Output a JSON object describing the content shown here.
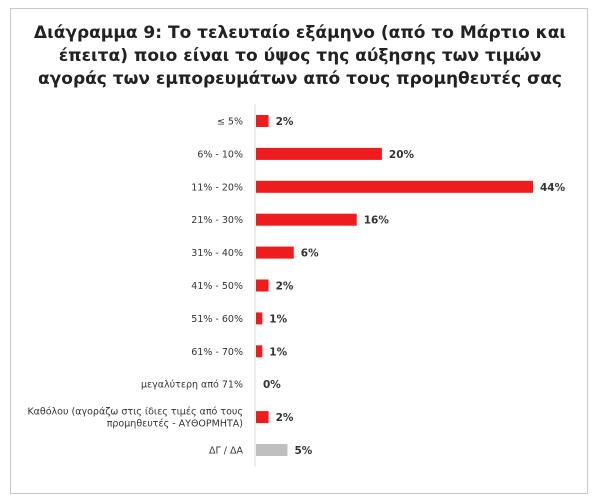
{
  "chart_data": {
    "type": "bar",
    "orientation": "horizontal",
    "title_lines": [
      "Διάγραμμα 9: Το τελευταίο εξάμηνο (από το Μάρτιο και",
      "έπειτα) ποιο είναι το ύψος της αύξησης των τιμών",
      "αγοράς των εμπορευμάτων από τους προμηθευτές σας"
    ],
    "categories": [
      [
        "≤ 5%"
      ],
      [
        "6% - 10%"
      ],
      [
        "11% - 20%"
      ],
      [
        "21% - 30%"
      ],
      [
        "31% - 40%"
      ],
      [
        "41% - 50%"
      ],
      [
        "51% - 60%"
      ],
      [
        "61% - 70%"
      ],
      [
        "μεγαλύτερη από 71%"
      ],
      [
        "Καθόλου (αγοράζω στις ίδιες τιμές από τους",
        "προμηθευτές - ΑΥΘΟΡΜΗΤΑ)"
      ],
      [
        "ΔΓ / ΔΑ"
      ]
    ],
    "values": [
      2,
      20,
      44,
      16,
      6,
      2,
      1,
      1,
      0,
      2,
      5
    ],
    "value_labels": [
      "2%",
      "20%",
      "44%",
      "16%",
      "6%",
      "2%",
      "1%",
      "1%",
      "0%",
      "2%",
      "5%"
    ],
    "bar_colors": [
      "#ee1c1c",
      "#ee1c1c",
      "#ee1c1c",
      "#ee1c1c",
      "#ee1c1c",
      "#ee1c1c",
      "#ee1c1c",
      "#ee1c1c",
      "#ee1c1c",
      "#ee1c1c",
      "#bfbfbf"
    ],
    "unit": "%",
    "xlim": [
      0,
      44
    ],
    "grid": false,
    "legend": "none"
  }
}
